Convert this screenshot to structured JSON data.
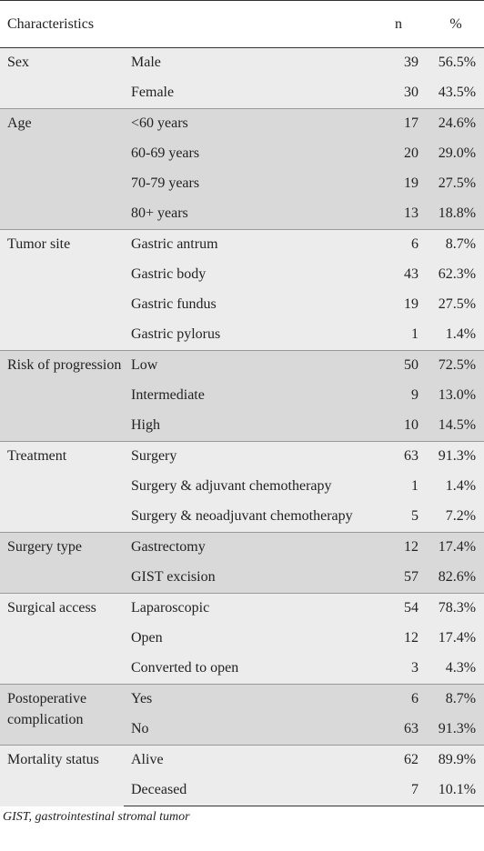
{
  "table": {
    "headers": [
      "Characteristics",
      "n",
      "%"
    ],
    "groups": [
      {
        "label": "Sex",
        "shade": "light",
        "rows": [
          {
            "value": "Male",
            "n": "39",
            "pct": "56.5%"
          },
          {
            "value": "Female",
            "n": "30",
            "pct": "43.5%"
          }
        ]
      },
      {
        "label": "Age",
        "shade": "dark",
        "rows": [
          {
            "value": "<60 years",
            "n": "17",
            "pct": "24.6%"
          },
          {
            "value": "60-69 years",
            "n": "20",
            "pct": "29.0%"
          },
          {
            "value": "70-79 years",
            "n": "19",
            "pct": "27.5%"
          },
          {
            "value": "80+ years",
            "n": "13",
            "pct": "18.8%"
          }
        ]
      },
      {
        "label": "Tumor site",
        "shade": "light",
        "rows": [
          {
            "value": "Gastric antrum",
            "n": "6",
            "pct": "8.7%"
          },
          {
            "value": "Gastric body",
            "n": "43",
            "pct": "62.3%"
          },
          {
            "value": "Gastric fundus",
            "n": "19",
            "pct": "27.5%"
          },
          {
            "value": "Gastric pylorus",
            "n": "1",
            "pct": "1.4%"
          }
        ]
      },
      {
        "label": "Risk of progression",
        "shade": "dark",
        "rows": [
          {
            "value": "Low",
            "n": "50",
            "pct": "72.5%"
          },
          {
            "value": "Intermediate",
            "n": "9",
            "pct": "13.0%"
          },
          {
            "value": "High",
            "n": "10",
            "pct": "14.5%"
          }
        ]
      },
      {
        "label": "Treatment",
        "shade": "light",
        "rows": [
          {
            "value": "Surgery",
            "n": "63",
            "pct": "91.3%"
          },
          {
            "value": "Surgery & adjuvant chemotherapy",
            "n": "1",
            "pct": "1.4%"
          },
          {
            "value": "Surgery & neoadjuvant chemotherapy",
            "n": "5",
            "pct": "7.2%"
          }
        ]
      },
      {
        "label": "Surgery type",
        "shade": "dark",
        "rows": [
          {
            "value": "Gastrectomy",
            "n": "12",
            "pct": "17.4%"
          },
          {
            "value": "GIST excision",
            "n": "57",
            "pct": "82.6%"
          }
        ]
      },
      {
        "label": "Surgical access",
        "shade": "light",
        "rows": [
          {
            "value": "Laparoscopic",
            "n": "54",
            "pct": "78.3%"
          },
          {
            "value": "Open",
            "n": "12",
            "pct": "17.4%"
          },
          {
            "value": "Converted to open",
            "n": "3",
            "pct": "4.3%"
          }
        ]
      },
      {
        "label": "Postoperative complication",
        "shade": "dark",
        "rows": [
          {
            "value": "Yes",
            "n": "6",
            "pct": "8.7%"
          },
          {
            "value": "No",
            "n": "63",
            "pct": "91.3%"
          }
        ]
      },
      {
        "label": "Mortality status",
        "shade": "light",
        "rows": [
          {
            "value": "Alive",
            "n": "62",
            "pct": "89.9%"
          },
          {
            "value": "Deceased",
            "n": "7",
            "pct": "10.1%"
          }
        ]
      }
    ],
    "footnote": "GIST, gastrointestinal stromal tumor"
  },
  "colors": {
    "shade_light": "#ececec",
    "shade_dark": "#d9d9d9",
    "rule": "#333333"
  }
}
